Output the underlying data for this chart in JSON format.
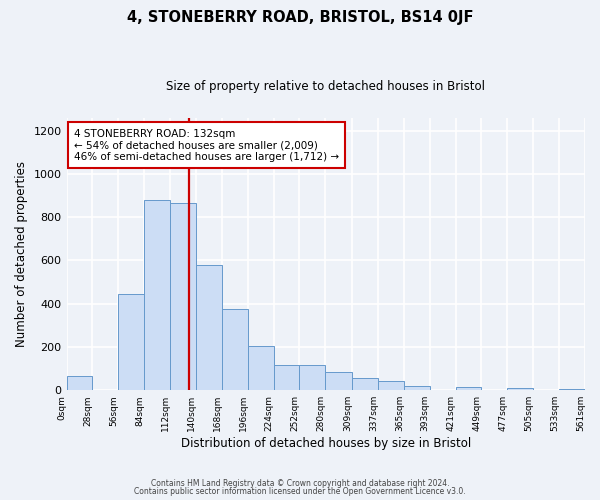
{
  "title": "4, STONEBERRY ROAD, BRISTOL, BS14 0JF",
  "subtitle": "Size of property relative to detached houses in Bristol",
  "xlabel": "Distribution of detached houses by size in Bristol",
  "ylabel": "Number of detached properties",
  "bar_color": "#ccddf5",
  "bar_edge_color": "#6699cc",
  "background_color": "#eef2f8",
  "grid_color": "#ffffff",
  "annotation_box_color": "#cc0000",
  "vline_color": "#cc0000",
  "vline_x": 132,
  "annotation_title": "4 STONEBERRY ROAD: 132sqm",
  "annotation_line1": "← 54% of detached houses are smaller (2,009)",
  "annotation_line2": "46% of semi-detached houses are larger (1,712) →",
  "footer1": "Contains HM Land Registry data © Crown copyright and database right 2024.",
  "footer2": "Contains public sector information licensed under the Open Government Licence v3.0.",
  "bin_edges": [
    0,
    28,
    56,
    84,
    112,
    140,
    168,
    196,
    224,
    252,
    280,
    309,
    337,
    365,
    393,
    421,
    449,
    477,
    505,
    533,
    561
  ],
  "bin_values": [
    65,
    0,
    445,
    880,
    865,
    580,
    375,
    205,
    115,
    115,
    85,
    55,
    42,
    18,
    0,
    13,
    0,
    8,
    0,
    5
  ],
  "ylim": [
    0,
    1260
  ],
  "yticks": [
    0,
    200,
    400,
    600,
    800,
    1000,
    1200
  ]
}
